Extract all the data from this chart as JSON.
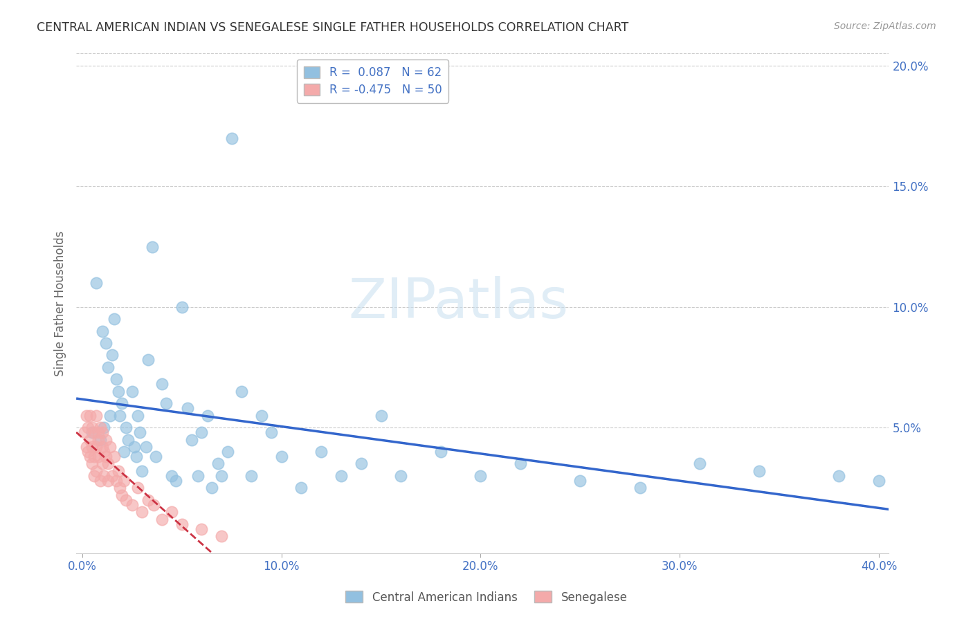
{
  "title": "CENTRAL AMERICAN INDIAN VS SENEGALESE SINGLE FATHER HOUSEHOLDS CORRELATION CHART",
  "source": "Source: ZipAtlas.com",
  "ylabel": "Single Father Households",
  "xlim": [
    -0.003,
    0.405
  ],
  "ylim": [
    -0.002,
    0.205
  ],
  "xticks": [
    0.0,
    0.1,
    0.2,
    0.3,
    0.4
  ],
  "xtick_labels": [
    "0.0%",
    "10.0%",
    "20.0%",
    "30.0%",
    "40.0%"
  ],
  "yticks_right": [
    0.05,
    0.1,
    0.15,
    0.2
  ],
  "ytick_labels_right": [
    "5.0%",
    "10.0%",
    "15.0%",
    "20.0%"
  ],
  "R_blue": 0.087,
  "N_blue": 62,
  "R_pink": -0.475,
  "N_pink": 50,
  "legend_label_blue": "Central American Indians",
  "legend_label_pink": "Senegalese",
  "blue_color": "#92C0E0",
  "pink_color": "#F4AAAA",
  "trend_blue_color": "#3366CC",
  "trend_pink_color": "#CC3344",
  "watermark": "ZIPatlas",
  "background_color": "#ffffff",
  "blue_scatter_x": [
    0.005,
    0.007,
    0.009,
    0.01,
    0.011,
    0.012,
    0.013,
    0.014,
    0.015,
    0.016,
    0.017,
    0.018,
    0.019,
    0.02,
    0.021,
    0.022,
    0.023,
    0.025,
    0.026,
    0.027,
    0.028,
    0.029,
    0.03,
    0.032,
    0.033,
    0.035,
    0.037,
    0.04,
    0.042,
    0.045,
    0.047,
    0.05,
    0.053,
    0.055,
    0.058,
    0.06,
    0.063,
    0.065,
    0.068,
    0.07,
    0.073,
    0.075,
    0.08,
    0.085,
    0.09,
    0.095,
    0.1,
    0.11,
    0.12,
    0.13,
    0.14,
    0.15,
    0.16,
    0.18,
    0.2,
    0.22,
    0.25,
    0.28,
    0.31,
    0.34,
    0.38,
    0.4
  ],
  "blue_scatter_y": [
    0.048,
    0.11,
    0.045,
    0.09,
    0.05,
    0.085,
    0.075,
    0.055,
    0.08,
    0.095,
    0.07,
    0.065,
    0.055,
    0.06,
    0.04,
    0.05,
    0.045,
    0.065,
    0.042,
    0.038,
    0.055,
    0.048,
    0.032,
    0.042,
    0.078,
    0.125,
    0.038,
    0.068,
    0.06,
    0.03,
    0.028,
    0.1,
    0.058,
    0.045,
    0.03,
    0.048,
    0.055,
    0.025,
    0.035,
    0.03,
    0.04,
    0.17,
    0.065,
    0.03,
    0.055,
    0.048,
    0.038,
    0.025,
    0.04,
    0.03,
    0.035,
    0.055,
    0.03,
    0.04,
    0.03,
    0.035,
    0.028,
    0.025,
    0.035,
    0.032,
    0.03,
    0.028
  ],
  "pink_scatter_x": [
    0.001,
    0.002,
    0.002,
    0.003,
    0.003,
    0.004,
    0.004,
    0.004,
    0.005,
    0.005,
    0.005,
    0.006,
    0.006,
    0.006,
    0.007,
    0.007,
    0.007,
    0.008,
    0.008,
    0.008,
    0.009,
    0.009,
    0.01,
    0.01,
    0.01,
    0.011,
    0.011,
    0.012,
    0.012,
    0.013,
    0.013,
    0.014,
    0.015,
    0.016,
    0.017,
    0.018,
    0.019,
    0.02,
    0.021,
    0.022,
    0.025,
    0.028,
    0.03,
    0.033,
    0.036,
    0.04,
    0.045,
    0.05,
    0.06,
    0.07
  ],
  "pink_scatter_y": [
    0.048,
    0.042,
    0.055,
    0.04,
    0.05,
    0.045,
    0.038,
    0.055,
    0.042,
    0.035,
    0.05,
    0.038,
    0.048,
    0.03,
    0.042,
    0.055,
    0.032,
    0.048,
    0.038,
    0.045,
    0.05,
    0.028,
    0.042,
    0.035,
    0.048,
    0.04,
    0.03,
    0.038,
    0.045,
    0.035,
    0.028,
    0.042,
    0.03,
    0.038,
    0.028,
    0.032,
    0.025,
    0.022,
    0.028,
    0.02,
    0.018,
    0.025,
    0.015,
    0.02,
    0.018,
    0.012,
    0.015,
    0.01,
    0.008,
    0.005
  ]
}
